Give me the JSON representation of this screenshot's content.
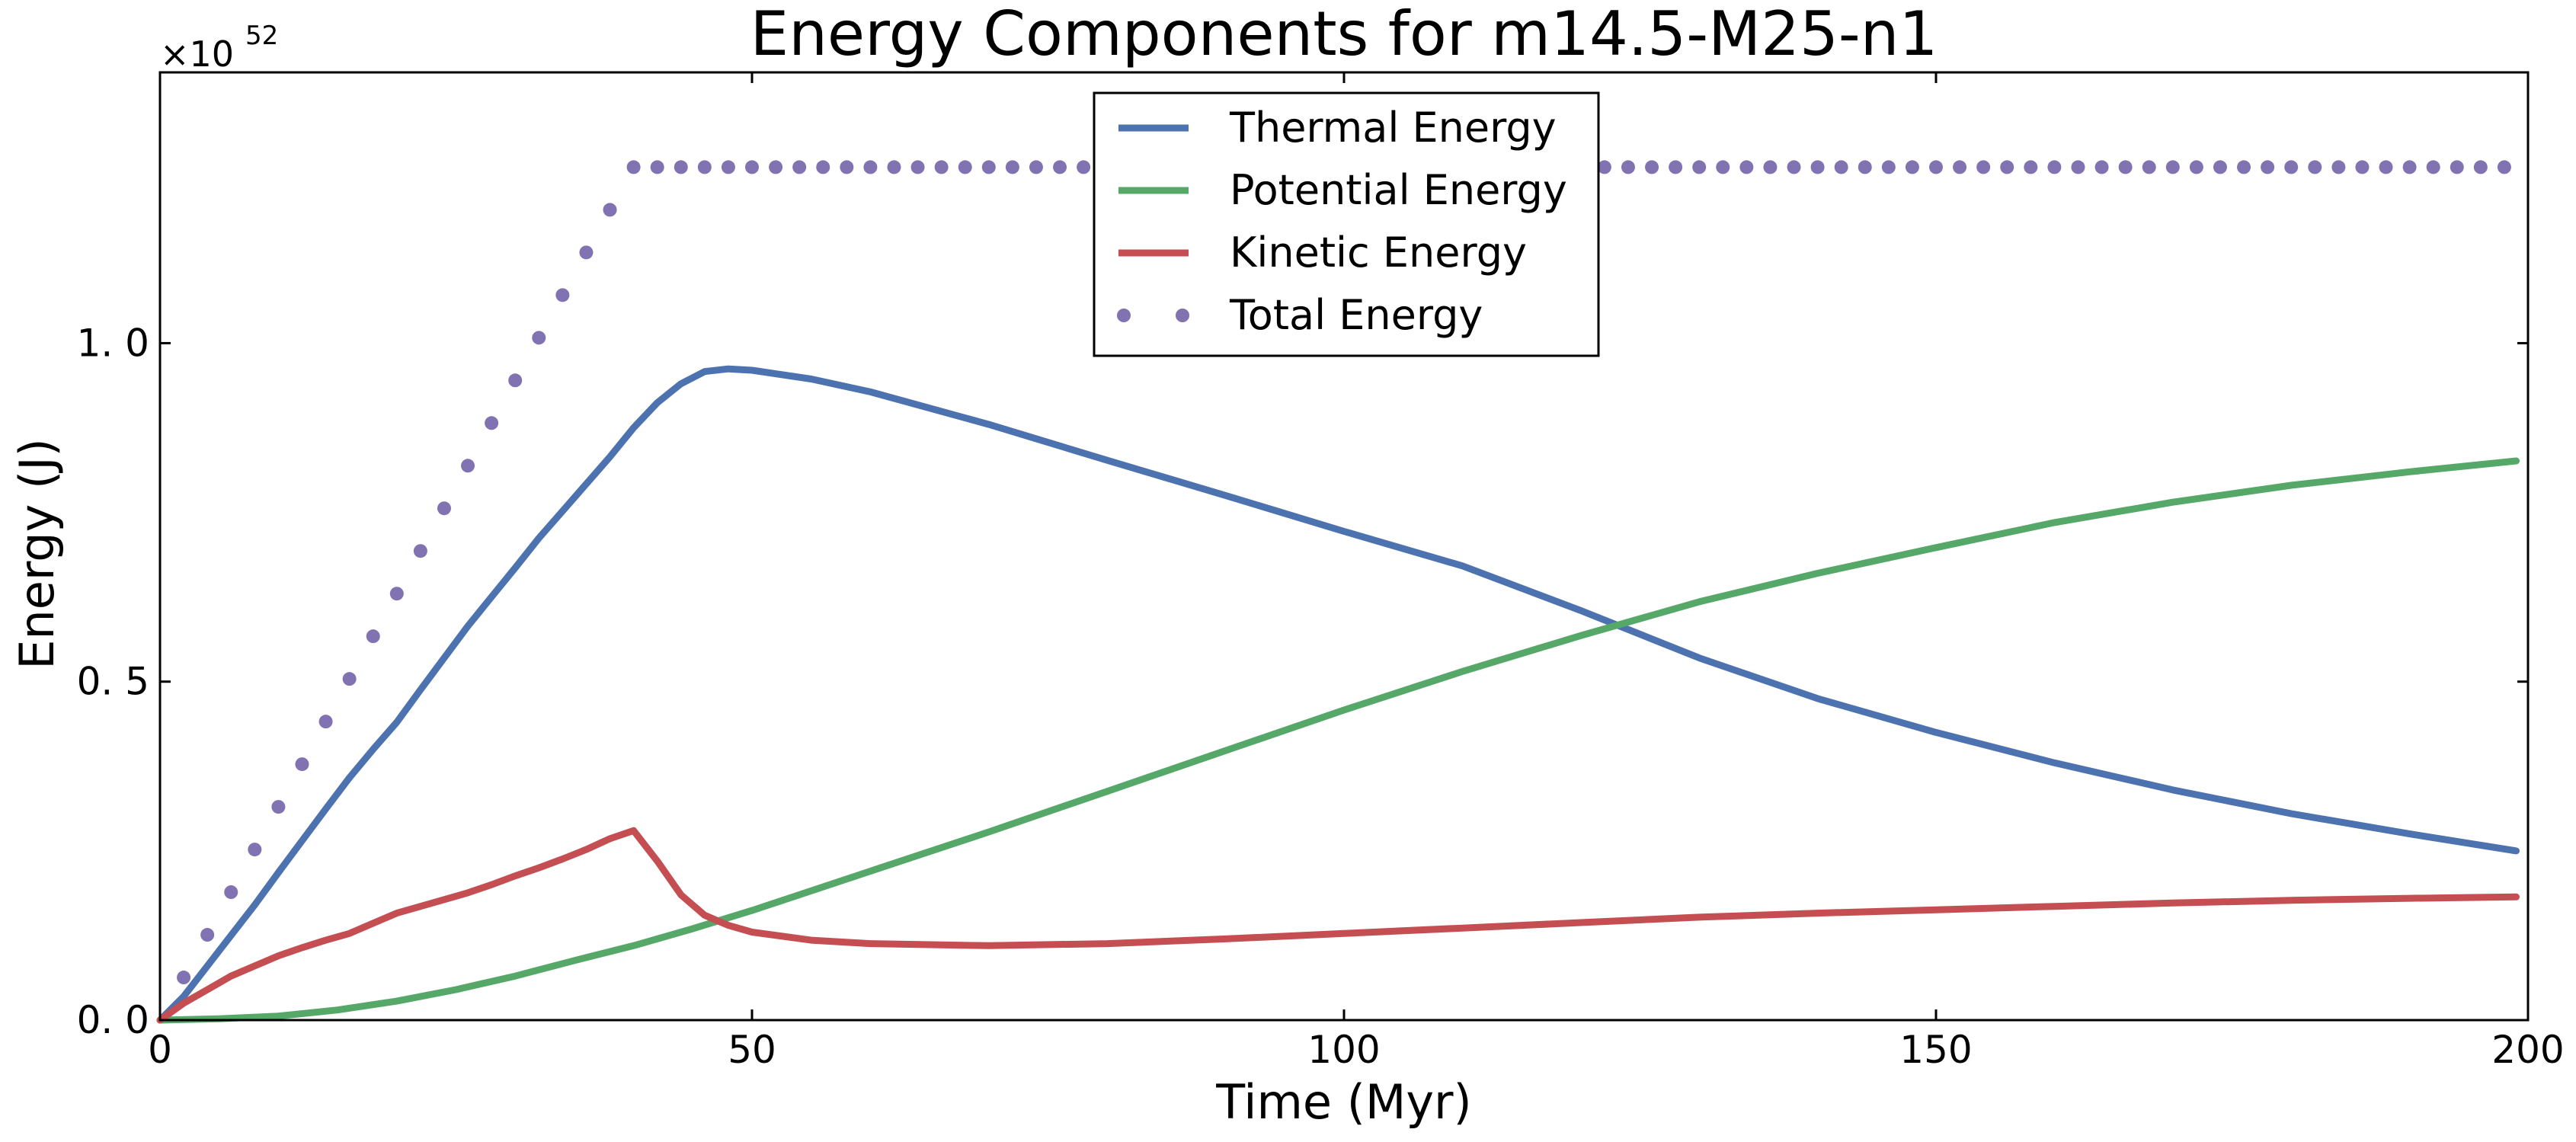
{
  "chart_data": {
    "type": "line",
    "title": "Energy Components for m14.5-M25-n1",
    "xlabel": "Time (Myr)",
    "ylabel": "Energy (J)",
    "y_multiplier_label": "×10",
    "y_multiplier_exponent": "52",
    "xlim": [
      0,
      200
    ],
    "ylim": [
      0,
      1.4
    ],
    "xticks": [
      0,
      50,
      100,
      150,
      200
    ],
    "xtick_labels": [
      "0",
      "50",
      "100",
      "150",
      "200"
    ],
    "yticks": [
      0,
      0.5,
      1.0
    ],
    "ytick_labels": [
      "0. 0",
      "0. 5",
      "1. 0"
    ],
    "grid": false,
    "legend_position": "top-center",
    "colors": {
      "thermal": "#4c72b0",
      "potential": "#55a868",
      "kinetic": "#c44e52",
      "total": "#8172b2"
    },
    "series": [
      {
        "name": "Thermal Energy",
        "style": "line",
        "color": "#4c72b0",
        "x": [
          0,
          2,
          4,
          6,
          8,
          10,
          12,
          14,
          16,
          18,
          20,
          22,
          24,
          26,
          28,
          30,
          32,
          34,
          36,
          38,
          40,
          42,
          44,
          46,
          48,
          50,
          55,
          60,
          70,
          80,
          90,
          100,
          110,
          120,
          130,
          140,
          150,
          160,
          170,
          180,
          190,
          199
        ],
        "y": [
          0.0,
          0.035,
          0.08,
          0.125,
          0.17,
          0.218,
          0.265,
          0.312,
          0.358,
          0.4,
          0.44,
          0.488,
          0.535,
          0.582,
          0.625,
          0.668,
          0.712,
          0.752,
          0.792,
          0.832,
          0.875,
          0.912,
          0.94,
          0.958,
          0.962,
          0.96,
          0.947,
          0.928,
          0.88,
          0.827,
          0.775,
          0.722,
          0.671,
          0.605,
          0.535,
          0.475,
          0.425,
          0.38,
          0.34,
          0.305,
          0.275,
          0.25
        ]
      },
      {
        "name": "Potential Energy",
        "style": "line",
        "color": "#55a868",
        "x": [
          0,
          5,
          10,
          15,
          20,
          25,
          30,
          35,
          40,
          45,
          50,
          60,
          70,
          80,
          90,
          100,
          110,
          120,
          130,
          140,
          150,
          160,
          170,
          180,
          190,
          199
        ],
        "y": [
          0.0,
          0.002,
          0.006,
          0.015,
          0.028,
          0.045,
          0.065,
          0.088,
          0.11,
          0.135,
          0.162,
          0.22,
          0.278,
          0.338,
          0.398,
          0.458,
          0.515,
          0.568,
          0.618,
          0.66,
          0.698,
          0.735,
          0.765,
          0.79,
          0.81,
          0.826
        ]
      },
      {
        "name": "Kinetic Energy",
        "style": "line",
        "color": "#c44e52",
        "x": [
          0,
          2,
          4,
          6,
          8,
          10,
          12,
          14,
          16,
          18,
          20,
          22,
          24,
          26,
          28,
          30,
          32,
          34,
          36,
          38,
          40,
          42,
          44,
          46,
          48,
          50,
          55,
          60,
          70,
          80,
          90,
          100,
          110,
          120,
          130,
          140,
          150,
          160,
          170,
          180,
          190,
          199
        ],
        "y": [
          0.0,
          0.025,
          0.045,
          0.065,
          0.08,
          0.095,
          0.107,
          0.118,
          0.128,
          0.143,
          0.158,
          0.168,
          0.178,
          0.188,
          0.2,
          0.213,
          0.225,
          0.238,
          0.252,
          0.268,
          0.28,
          0.235,
          0.185,
          0.155,
          0.14,
          0.13,
          0.118,
          0.113,
          0.11,
          0.113,
          0.12,
          0.128,
          0.136,
          0.144,
          0.152,
          0.158,
          0.163,
          0.168,
          0.173,
          0.177,
          0.18,
          0.182
        ]
      },
      {
        "name": "Total Energy",
        "style": "dots",
        "color": "#8172b2",
        "x": [
          2,
          4,
          6,
          8,
          10,
          12,
          14,
          16,
          18,
          20,
          22,
          24,
          26,
          28,
          30,
          32,
          34,
          36,
          38,
          40,
          42,
          44,
          46,
          48,
          50,
          52,
          54,
          56,
          58,
          60,
          62,
          64,
          66,
          68,
          70,
          72,
          74,
          76,
          78,
          80,
          82,
          84,
          86,
          88,
          90,
          92,
          94,
          96,
          98,
          100,
          102,
          104,
          106,
          108,
          110,
          112,
          114,
          116,
          118,
          120,
          122,
          124,
          126,
          128,
          130,
          132,
          134,
          136,
          138,
          140,
          142,
          144,
          146,
          148,
          150,
          152,
          154,
          156,
          158,
          160,
          162,
          164,
          166,
          168,
          170,
          172,
          174,
          176,
          178,
          180,
          182,
          184,
          186,
          188,
          190,
          192,
          194,
          196,
          198
        ],
        "y": [
          0.063,
          0.126,
          0.189,
          0.252,
          0.315,
          0.378,
          0.441,
          0.504,
          0.567,
          0.63,
          0.693,
          0.756,
          0.819,
          0.882,
          0.945,
          1.008,
          1.071,
          1.134,
          1.197,
          1.26,
          1.26,
          1.26,
          1.26,
          1.26,
          1.26,
          1.26,
          1.26,
          1.26,
          1.26,
          1.26,
          1.26,
          1.26,
          1.26,
          1.26,
          1.26,
          1.26,
          1.26,
          1.26,
          1.26,
          1.26,
          1.26,
          1.26,
          1.26,
          1.26,
          1.26,
          1.26,
          1.26,
          1.26,
          1.26,
          1.26,
          1.26,
          1.26,
          1.26,
          1.26,
          1.26,
          1.26,
          1.26,
          1.26,
          1.26,
          1.26,
          1.26,
          1.26,
          1.26,
          1.26,
          1.26,
          1.26,
          1.26,
          1.26,
          1.26,
          1.26,
          1.26,
          1.26,
          1.26,
          1.26,
          1.26,
          1.26,
          1.26,
          1.26,
          1.26,
          1.26,
          1.26,
          1.26,
          1.26,
          1.26,
          1.26,
          1.26,
          1.26,
          1.26,
          1.26,
          1.26,
          1.26,
          1.26,
          1.26,
          1.26,
          1.26,
          1.26,
          1.26,
          1.26,
          1.26
        ]
      }
    ]
  }
}
